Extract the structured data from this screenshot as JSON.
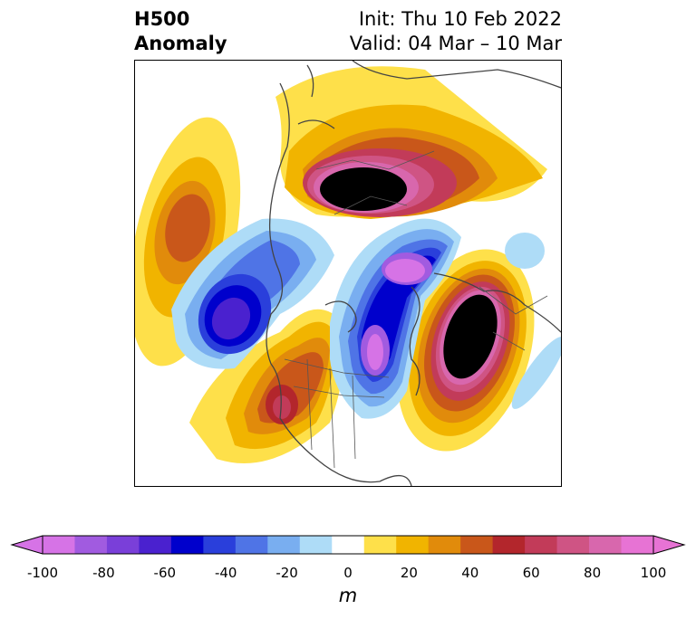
{
  "title": {
    "line1_left": "H500",
    "line2_left": "Anomaly",
    "line1_right": "Init: Thu 10 Feb 2022",
    "line2_right": "Valid: 04 Mar – 10 Mar"
  },
  "colorbar": {
    "units": "m",
    "min": -100,
    "max": 100,
    "extend": "both",
    "ticks": [
      "-100",
      "-80",
      "-60",
      "-40",
      "-20",
      "0",
      "20",
      "40",
      "60",
      "80",
      "100"
    ],
    "levels": [
      -100,
      -90,
      -80,
      -70,
      -60,
      -50,
      -40,
      -30,
      -20,
      -10,
      10,
      20,
      30,
      40,
      50,
      60,
      70,
      80,
      90,
      100
    ],
    "colors": [
      "#d673e6",
      "#a15be0",
      "#7a3fd9",
      "#4a21cf",
      "#0000cc",
      "#2a3fdb",
      "#4f74e6",
      "#79aef0",
      "#aedcf7",
      "#ffffff",
      "#fee04a",
      "#f1b400",
      "#e18b0b",
      "#c9571a",
      "#b3262c",
      "#c23b59",
      "#cf5484",
      "#d867ad",
      "#e773d4"
    ],
    "extend_low_color": "#d673e6",
    "extend_high_color": "#e773d4"
  },
  "map": {
    "projection": "north polar stereographic",
    "region": "Northern Hemisphere",
    "anomaly_centers": [
      {
        "sign": "positive",
        "peak": 100,
        "location": "Greenland / Arctic"
      },
      {
        "sign": "positive",
        "peak": 100,
        "location": "North Atlantic"
      },
      {
        "sign": "positive",
        "peak": 50,
        "location": "western North Pacific"
      },
      {
        "sign": "positive",
        "peak": 60,
        "location": "western United States"
      },
      {
        "sign": "negative",
        "peak": -100,
        "location": "Hudson Bay / Great Lakes"
      },
      {
        "sign": "negative",
        "peak": -100,
        "location": "Barents Sea"
      },
      {
        "sign": "negative",
        "peak": -70,
        "location": "eastern North Pacific"
      },
      {
        "sign": "negative",
        "peak": -20,
        "location": "eastern Atlantic"
      }
    ]
  }
}
